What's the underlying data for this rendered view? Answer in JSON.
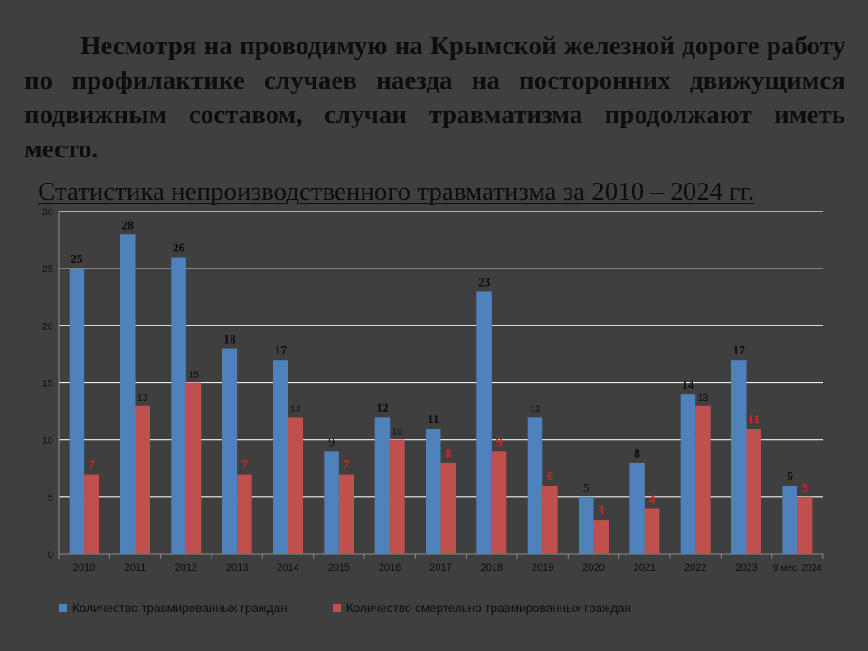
{
  "intro_text": "Несмотря на проводимую на Крымской железной дороге работу по профилактике случаев наезда на посторонних движущимся подвижным составом, случаи травматизма продолжают иметь место.",
  "subtitle": "Статистика непроизводственного травматизма за 2010 – 2024 гг.",
  "colors": {
    "background": "#3f3f3f",
    "text": "#0d0d0d",
    "injured": "#4f81bd",
    "fatal": "#c0504d",
    "fatal_label_red": "#e02020",
    "gridline": "#f2f2f2"
  },
  "chart_data": {
    "type": "bar",
    "categories": [
      "2010",
      "2011",
      "2012",
      "2013",
      "2014",
      "2015",
      "2016",
      "2017",
      "2018",
      "2019",
      "2020",
      "2021",
      "2022",
      "2023",
      "9 мес. 2024"
    ],
    "series": [
      {
        "name": "Количество травмированных граждан",
        "values": [
          25,
          28,
          26,
          18,
          17,
          9,
          12,
          11,
          23,
          12,
          5,
          8,
          14,
          17,
          6
        ],
        "data_labels": [
          "25",
          "28",
          "26",
          "18",
          "17",
          "9",
          "12",
          "11",
          "23",
          "12",
          "5",
          "8",
          "14",
          "17",
          "6"
        ]
      },
      {
        "name": "Количество смертельно травмированных граждан",
        "values": [
          7,
          13,
          15,
          7,
          12,
          7,
          10,
          8,
          9,
          6,
          3,
          4,
          13,
          11,
          5
        ],
        "data_labels": [
          "7",
          "13",
          "15",
          "7",
          "12",
          "7",
          "10",
          "8",
          "9",
          "6",
          "3",
          "4",
          "13",
          "11",
          "5"
        ]
      }
    ],
    "ylim": [
      0,
      30
    ],
    "yticks": [
      0,
      5,
      10,
      15,
      20,
      25,
      30
    ],
    "grid": true,
    "legend_position": "bottom"
  }
}
